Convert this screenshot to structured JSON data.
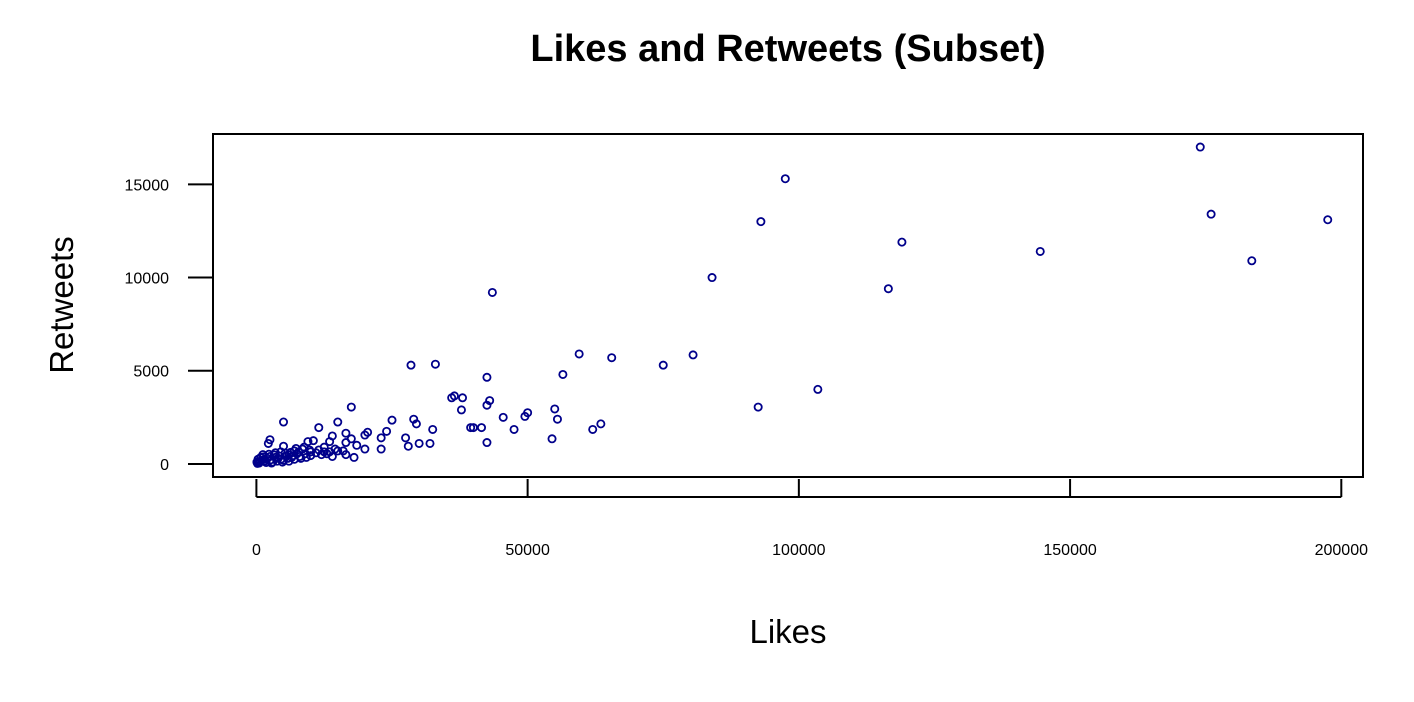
{
  "chart_data": {
    "type": "scatter",
    "title": "Likes and Retweets (Subset)",
    "xlabel": "Likes",
    "ylabel": "Retweets",
    "xlim": [
      -8000,
      204000
    ],
    "ylim": [
      -700,
      17700
    ],
    "x_ticks": [
      0,
      50000,
      100000,
      150000,
      200000
    ],
    "x_tick_labels": [
      "0",
      "50000",
      "100000",
      "150000",
      "200000"
    ],
    "y_ticks": [
      0,
      5000,
      10000,
      15000
    ],
    "y_tick_labels": [
      "0",
      "5000",
      "10000",
      "15000"
    ],
    "grid": false,
    "marker_color": "#00008B",
    "points": [
      [
        174000,
        17000
      ],
      [
        97500,
        15300
      ],
      [
        176000,
        13400
      ],
      [
        197500,
        13100
      ],
      [
        93000,
        13000
      ],
      [
        119000,
        11900
      ],
      [
        144500,
        11400
      ],
      [
        183500,
        10900
      ],
      [
        84000,
        10000
      ],
      [
        116500,
        9400
      ],
      [
        43500,
        9200
      ],
      [
        59500,
        5900
      ],
      [
        80500,
        5850
      ],
      [
        65500,
        5700
      ],
      [
        33000,
        5350
      ],
      [
        28500,
        5300
      ],
      [
        75000,
        5300
      ],
      [
        56500,
        4800
      ],
      [
        42500,
        4650
      ],
      [
        103500,
        4000
      ],
      [
        92500,
        3050
      ],
      [
        17500,
        3050
      ],
      [
        36500,
        3650
      ],
      [
        36000,
        3550
      ],
      [
        38000,
        3550
      ],
      [
        43000,
        3400
      ],
      [
        42500,
        3150
      ],
      [
        37800,
        2900
      ],
      [
        55000,
        2950
      ],
      [
        50000,
        2750
      ],
      [
        49500,
        2550
      ],
      [
        45500,
        2500
      ],
      [
        55500,
        2400
      ],
      [
        29000,
        2400
      ],
      [
        25000,
        2350
      ],
      [
        29500,
        2150
      ],
      [
        15000,
        2250
      ],
      [
        5000,
        2250
      ],
      [
        63500,
        2150
      ],
      [
        62000,
        1850
      ],
      [
        47500,
        1850
      ],
      [
        32500,
        1850
      ],
      [
        40000,
        1950
      ],
      [
        41500,
        1950
      ],
      [
        39500,
        1950
      ],
      [
        11500,
        1950
      ],
      [
        24000,
        1750
      ],
      [
        20500,
        1700
      ],
      [
        16500,
        1650
      ],
      [
        20000,
        1550
      ],
      [
        14000,
        1500
      ],
      [
        54500,
        1350
      ],
      [
        27500,
        1400
      ],
      [
        42500,
        1150
      ],
      [
        23000,
        1400
      ],
      [
        17500,
        1350
      ],
      [
        2500,
        1300
      ],
      [
        2200,
        1100
      ],
      [
        30000,
        1100
      ],
      [
        32000,
        1100
      ],
      [
        28000,
        950
      ],
      [
        18500,
        1000
      ],
      [
        16500,
        1150
      ],
      [
        20000,
        800
      ],
      [
        13500,
        1200
      ],
      [
        10500,
        1250
      ],
      [
        9500,
        1200
      ],
      [
        5000,
        950
      ],
      [
        23000,
        800
      ],
      [
        16000,
        700
      ],
      [
        14500,
        800
      ],
      [
        12500,
        650
      ],
      [
        12000,
        500
      ],
      [
        14000,
        400
      ],
      [
        18000,
        350
      ],
      [
        16500,
        500
      ],
      [
        10000,
        650
      ],
      [
        8500,
        800
      ],
      [
        7000,
        700
      ],
      [
        6000,
        500
      ],
      [
        4500,
        650
      ],
      [
        3500,
        600
      ],
      [
        1200,
        500
      ],
      [
        800,
        350
      ],
      [
        300,
        250
      ],
      [
        100,
        100
      ],
      [
        500,
        50
      ],
      [
        1500,
        150
      ],
      [
        2500,
        200
      ],
      [
        3000,
        100
      ],
      [
        4000,
        300
      ],
      [
        5000,
        200
      ],
      [
        6000,
        150
      ],
      [
        7000,
        250
      ],
      [
        8000,
        400
      ],
      [
        9000,
        550
      ],
      [
        10000,
        450
      ],
      [
        11000,
        600
      ],
      [
        13000,
        550
      ],
      [
        15000,
        700
      ],
      [
        7500,
        550
      ],
      [
        6500,
        350
      ],
      [
        5500,
        450
      ],
      [
        4500,
        250
      ],
      [
        3500,
        350
      ],
      [
        2500,
        400
      ],
      [
        2000,
        300
      ],
      [
        1500,
        250
      ],
      [
        1000,
        200
      ],
      [
        700,
        150
      ],
      [
        400,
        80
      ],
      [
        200,
        30
      ],
      [
        1800,
        80
      ],
      [
        2800,
        50
      ],
      [
        3800,
        150
      ],
      [
        4800,
        100
      ],
      [
        5800,
        300
      ],
      [
        6800,
        450
      ],
      [
        7800,
        650
      ],
      [
        8800,
        900
      ],
      [
        9800,
        750
      ],
      [
        11500,
        750
      ],
      [
        12500,
        900
      ],
      [
        13500,
        650
      ],
      [
        8200,
        300
      ],
      [
        9200,
        350
      ],
      [
        600,
        120
      ],
      [
        1300,
        380
      ],
      [
        2300,
        520
      ],
      [
        3300,
        480
      ],
      [
        4300,
        420
      ],
      [
        5300,
        580
      ],
      [
        6300,
        620
      ],
      [
        7300,
        830
      ]
    ]
  }
}
